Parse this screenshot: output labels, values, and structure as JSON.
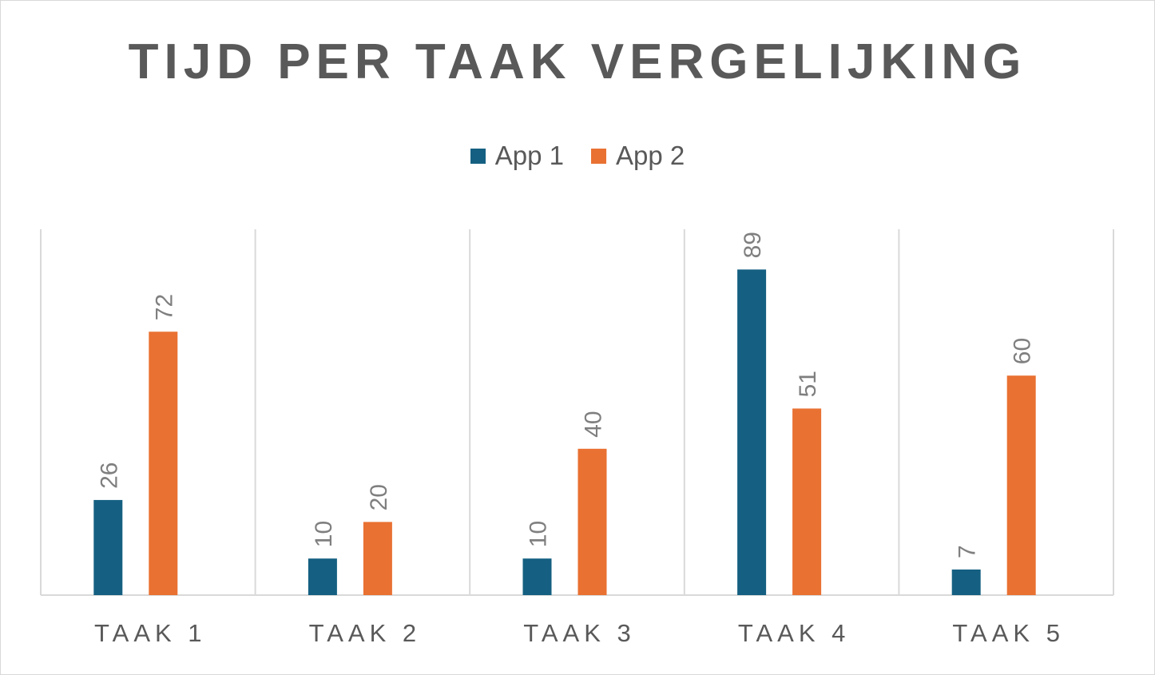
{
  "chart_data": {
    "type": "bar",
    "title": "TIJD PER TAAK VERGELIJKING",
    "xlabel": "",
    "ylabel": "",
    "categories": [
      "TAAK 1",
      "TAAK 2",
      "TAAK 3",
      "TAAK 4",
      "TAAK 5"
    ],
    "series": [
      {
        "name": "App 1",
        "color": "#156082",
        "values": [
          26,
          10,
          10,
          89,
          7
        ]
      },
      {
        "name": "App 2",
        "color": "#E97132",
        "values": [
          72,
          20,
          40,
          51,
          60
        ]
      }
    ],
    "ylim": [
      0,
      100
    ],
    "grid": "vertical separators between categories",
    "legend_position": "top",
    "data_labels": "rotated, above bars"
  }
}
